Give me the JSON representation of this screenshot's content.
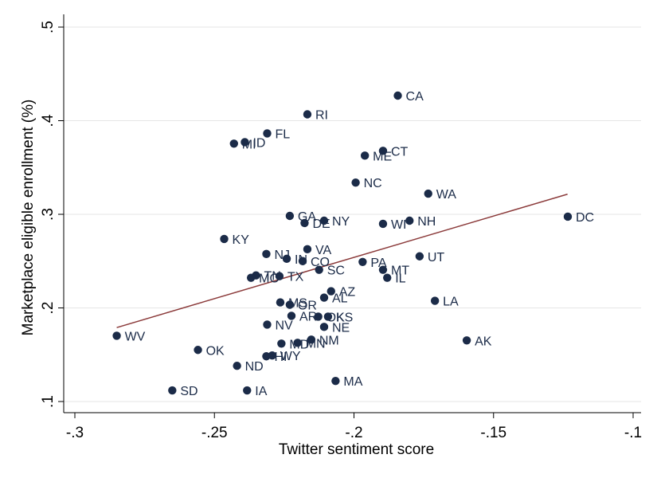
{
  "chart_data": {
    "type": "scatter",
    "xlabel": "Twitter sentiment score",
    "ylabel": "Marketplace eligible enrollment (%)",
    "xlim": [
      -0.3,
      -0.1
    ],
    "ylim": [
      0.1,
      0.5
    ],
    "xticks": [
      -0.3,
      -0.25,
      -0.2,
      -0.15,
      -0.1
    ],
    "xtick_labels": [
      "-.3",
      "-.25",
      "-.2",
      "-.15",
      "-.1"
    ],
    "yticks": [
      0.1,
      0.2,
      0.3,
      0.4,
      0.5
    ],
    "ytick_labels": [
      ".1",
      ".2",
      ".3",
      ".4",
      ".5"
    ],
    "grid": "horizontal",
    "legend": "none",
    "colors": {
      "point": "#1b2b48",
      "fit_line": "#8b3a3a",
      "gridline": "#e6e6e6"
    },
    "fit_line": {
      "x": [
        -0.285,
        -0.1235
      ],
      "y": [
        0.179,
        0.3215
      ]
    },
    "points": [
      {
        "label": "CA",
        "x": -0.1843,
        "y": 0.4268
      },
      {
        "label": "RI",
        "x": -0.2167,
        "y": 0.4068
      },
      {
        "label": "FL",
        "x": -0.2311,
        "y": 0.3864
      },
      {
        "label": "ID",
        "x": -0.2391,
        "y": 0.3771
      },
      {
        "label": "MI",
        "x": -0.243,
        "y": 0.3755
      },
      {
        "label": "CT",
        "x": -0.1896,
        "y": 0.3678
      },
      {
        "label": "ME",
        "x": -0.1961,
        "y": 0.3627
      },
      {
        "label": "NC",
        "x": -0.1994,
        "y": 0.3339
      },
      {
        "label": "WA",
        "x": -0.1734,
        "y": 0.3221
      },
      {
        "label": "DC",
        "x": -0.1234,
        "y": 0.2975
      },
      {
        "label": "GA",
        "x": -0.223,
        "y": 0.2983
      },
      {
        "label": "NY",
        "x": -0.2107,
        "y": 0.2932
      },
      {
        "label": "DE",
        "x": -0.2177,
        "y": 0.2907
      },
      {
        "label": "NH",
        "x": -0.1801,
        "y": 0.2932
      },
      {
        "label": "WI",
        "x": -0.1896,
        "y": 0.2898
      },
      {
        "label": "KY",
        "x": -0.2465,
        "y": 0.2737
      },
      {
        "label": "VA",
        "x": -0.2167,
        "y": 0.2627
      },
      {
        "label": "NJ",
        "x": -0.2314,
        "y": 0.2576
      },
      {
        "label": "IN",
        "x": -0.2241,
        "y": 0.2525
      },
      {
        "label": "CO",
        "x": -0.2184,
        "y": 0.25
      },
      {
        "label": "UT",
        "x": -0.1765,
        "y": 0.2551
      },
      {
        "label": "PA",
        "x": -0.1969,
        "y": 0.2491
      },
      {
        "label": "SC",
        "x": -0.2125,
        "y": 0.2407
      },
      {
        "label": "MT",
        "x": -0.1896,
        "y": 0.2407
      },
      {
        "label": "TN",
        "x": -0.2351,
        "y": 0.2347
      },
      {
        "label": "MO",
        "x": -0.2369,
        "y": 0.2322
      },
      {
        "label": "TX",
        "x": -0.2267,
        "y": 0.2339
      },
      {
        "label": "IL",
        "x": -0.1881,
        "y": 0.2322
      },
      {
        "label": "AZ",
        "x": -0.2082,
        "y": 0.2178
      },
      {
        "label": "AL",
        "x": -0.2107,
        "y": 0.211
      },
      {
        "label": "LA",
        "x": -0.171,
        "y": 0.2076
      },
      {
        "label": "MS",
        "x": -0.2264,
        "y": 0.2059
      },
      {
        "label": "OR",
        "x": -0.223,
        "y": 0.2034
      },
      {
        "label": "AR",
        "x": -0.2224,
        "y": 0.1915
      },
      {
        "label": "OK",
        "x": -0.2128,
        "y": 0.1907
      },
      {
        "label": "KS",
        "x": -0.2093,
        "y": 0.1907
      },
      {
        "label": "NV",
        "x": -0.2311,
        "y": 0.1822
      },
      {
        "label": "NE",
        "x": -0.2107,
        "y": 0.1797
      },
      {
        "label": "WV",
        "x": -0.285,
        "y": 0.1703
      },
      {
        "label": "AK",
        "x": -0.1596,
        "y": 0.1653
      },
      {
        "label": "NM",
        "x": -0.2153,
        "y": 0.1661
      },
      {
        "label": "MD",
        "x": -0.226,
        "y": 0.1619
      },
      {
        "label": "MN",
        "x": -0.2202,
        "y": 0.1627
      },
      {
        "label": "OK",
        "x": -0.2559,
        "y": 0.1551
      },
      {
        "label": "HI",
        "x": -0.2314,
        "y": 0.1483
      },
      {
        "label": "WY",
        "x": -0.2293,
        "y": 0.1492
      },
      {
        "label": "ND",
        "x": -0.2419,
        "y": 0.1381
      },
      {
        "label": "MA",
        "x": -0.2066,
        "y": 0.122
      },
      {
        "label": "SD",
        "x": -0.2651,
        "y": 0.1119
      },
      {
        "label": "IA",
        "x": -0.2383,
        "y": 0.1119
      }
    ]
  }
}
